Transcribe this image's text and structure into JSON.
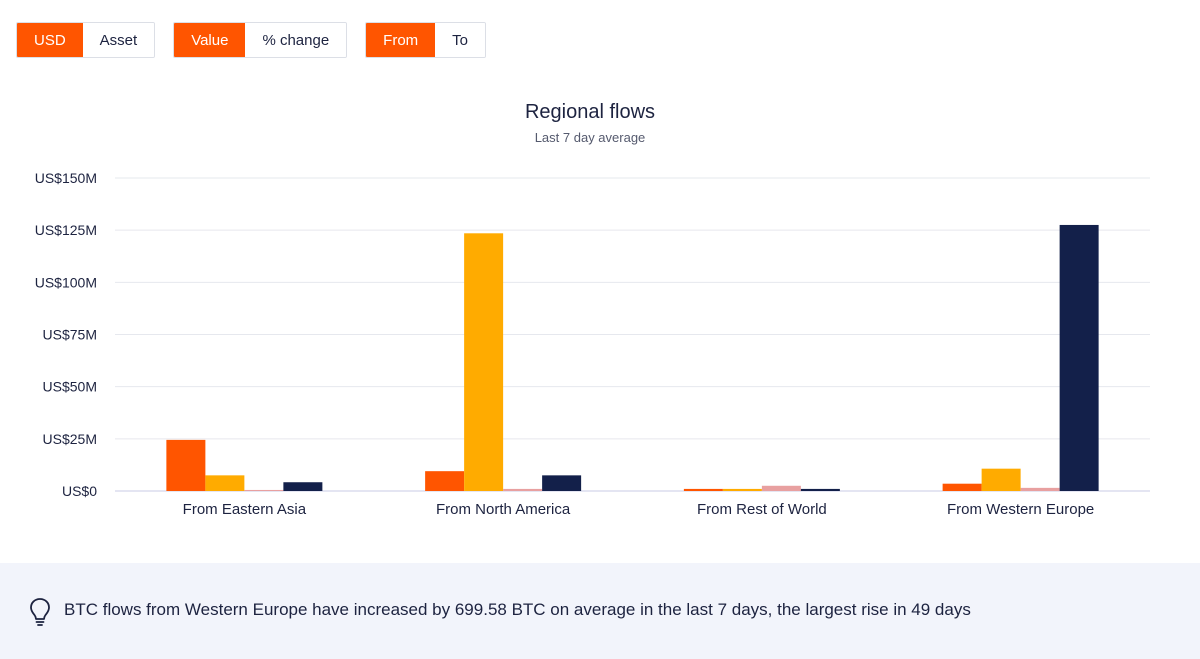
{
  "toggles": [
    {
      "options": [
        {
          "label": "USD",
          "active": true
        },
        {
          "label": "Asset",
          "active": false
        }
      ]
    },
    {
      "options": [
        {
          "label": "Value",
          "active": true
        },
        {
          "label": "% change",
          "active": false
        }
      ]
    },
    {
      "options": [
        {
          "label": "From",
          "active": true
        },
        {
          "label": "To",
          "active": false
        }
      ]
    }
  ],
  "chart_data": {
    "type": "bar",
    "title": "Regional flows",
    "subtitle": "Last 7 day average",
    "categories": [
      "From Eastern Asia",
      "From North America",
      "From Rest of World",
      "From Western Europe"
    ],
    "series": [
      {
        "color": "#ff5500",
        "values": [
          24.5,
          9.5,
          1.0,
          3.5
        ]
      },
      {
        "color": "#ffab00",
        "values": [
          7.5,
          123.5,
          1.0,
          10.7
        ]
      },
      {
        "color": "#e8a0a0",
        "values": [
          0.5,
          1.0,
          2.5,
          1.5
        ]
      },
      {
        "color": "#13204a",
        "values": [
          4.2,
          7.5,
          1.0,
          127.5
        ]
      }
    ],
    "yticks": [
      {
        "value": 0,
        "label": "US$0"
      },
      {
        "value": 25,
        "label": "US$25M"
      },
      {
        "value": 50,
        "label": "US$50M"
      },
      {
        "value": 75,
        "label": "US$75M"
      },
      {
        "value": 100,
        "label": "US$100M"
      },
      {
        "value": 125,
        "label": "US$125M"
      },
      {
        "value": 150,
        "label": "US$150M"
      }
    ],
    "ylim": [
      0,
      150
    ],
    "grid": true
  },
  "insight": {
    "icon": "lightbulb-icon",
    "text": "BTC flows from Western Europe have increased by 699.58 BTC on average in the last 7 days, the largest rise in 49 days"
  }
}
